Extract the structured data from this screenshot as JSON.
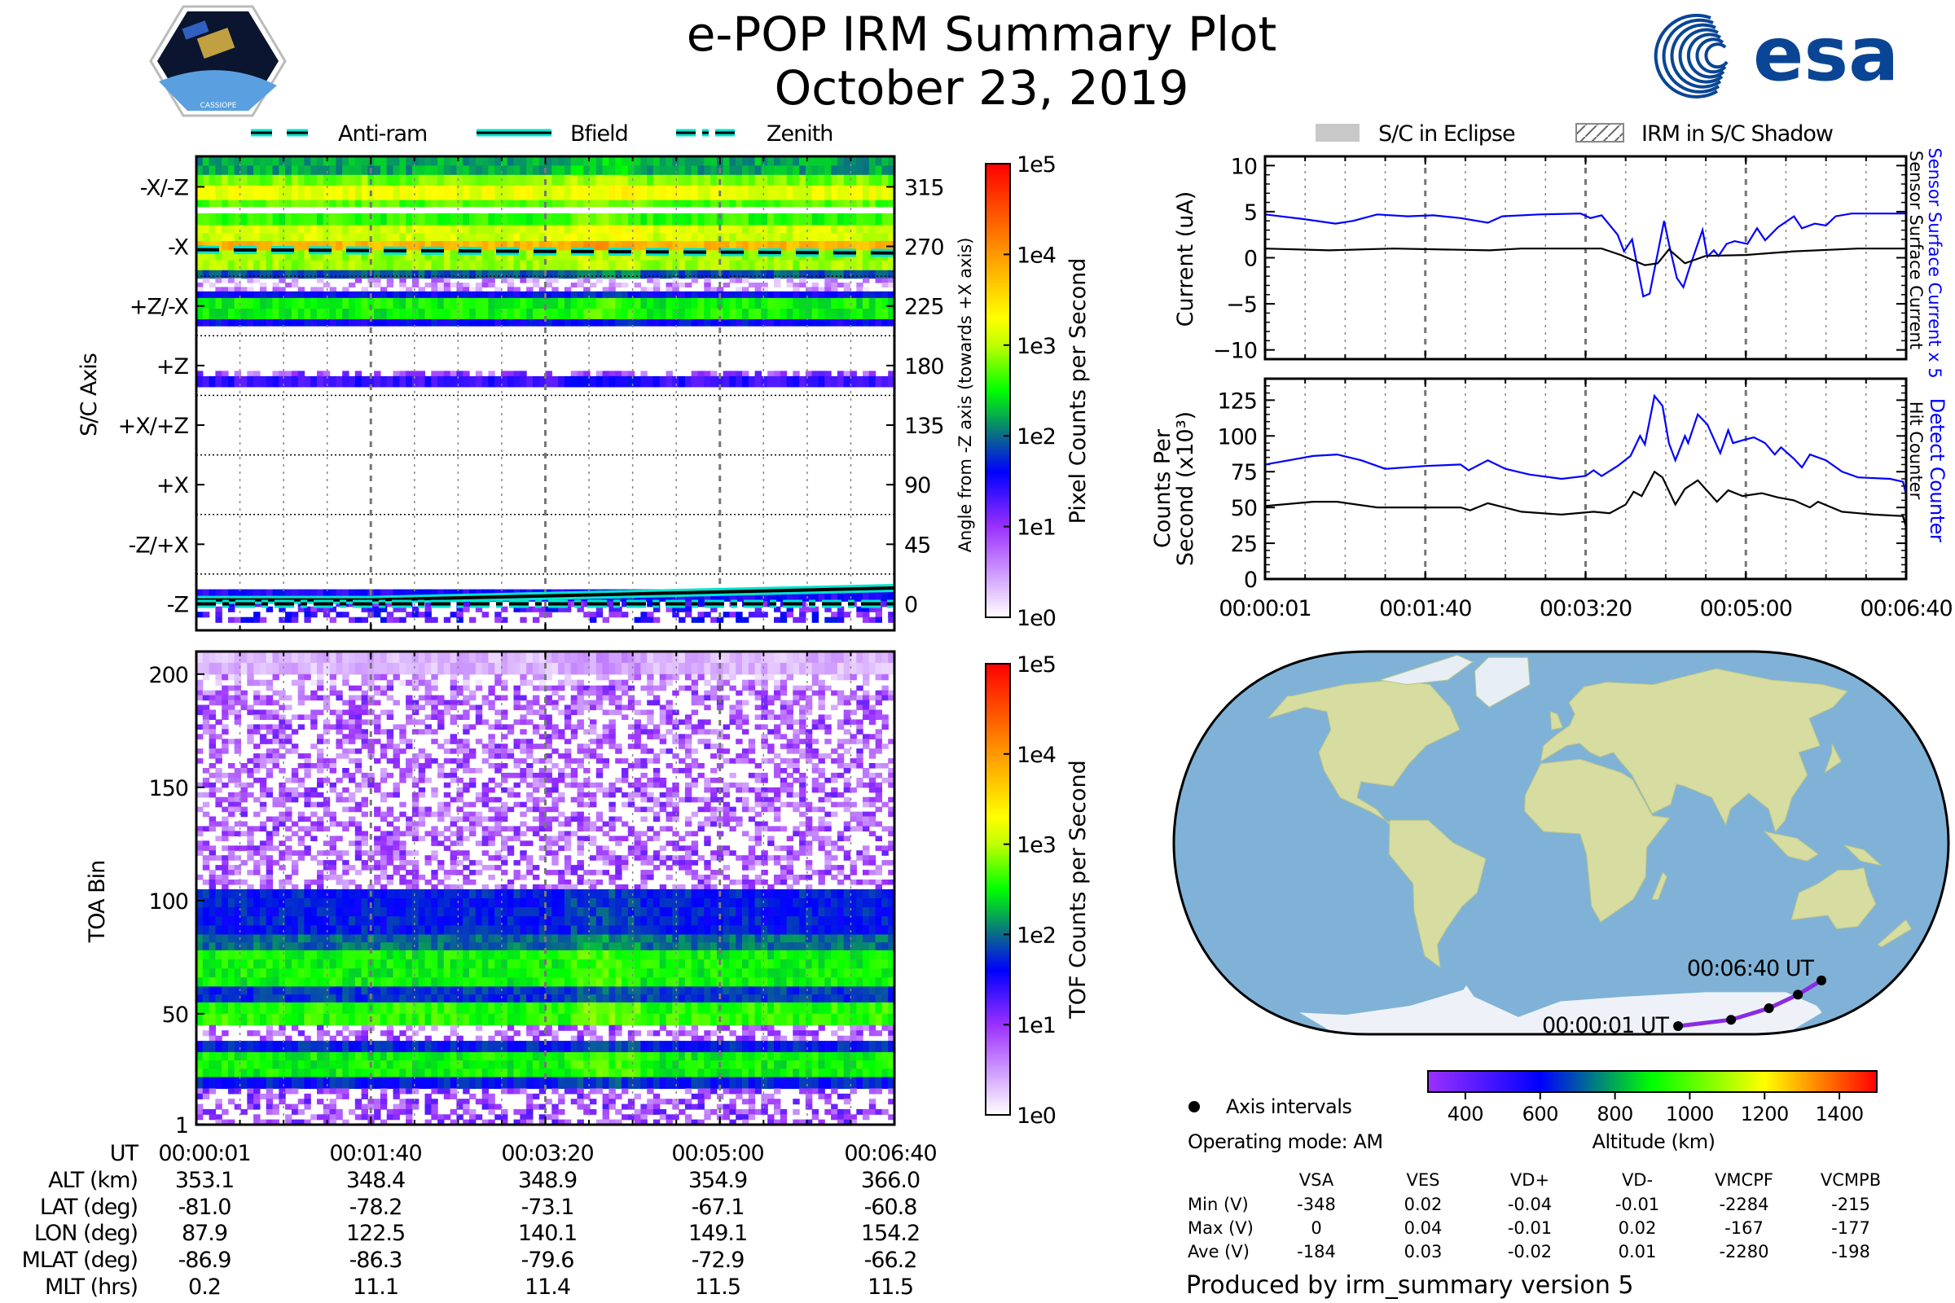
{
  "title": "e-POP IRM Summary Plot",
  "date": "October 23, 2019",
  "logos": {
    "left_text": "CASSIOPE",
    "right_text": "esa"
  },
  "colors": {
    "esa_blue": "#0a4595",
    "series_blue": "#0000ff",
    "series_black": "#000000",
    "bfield_outline": "#00e5d0",
    "trajectory": "#8a2be2",
    "eclipse_gray": "#c8c8c8"
  },
  "legend_left": [
    {
      "label": "Anti-ram",
      "style": "dashed"
    },
    {
      "label": "Bfield",
      "style": "solid"
    },
    {
      "label": "Zenith",
      "style": "dashdot"
    }
  ],
  "legend_right": [
    {
      "label": "S/C in Eclipse",
      "style": "gray-fill"
    },
    {
      "label": "IRM in S/C Shadow",
      "style": "hatch"
    }
  ],
  "chart_data": [
    {
      "id": "angle_spectrogram",
      "type": "heatmap",
      "xlabel": "",
      "x_unit": "seconds from 00:00:01",
      "xlim": [
        0,
        400
      ],
      "ylabel_left": "S/C Axis",
      "ylabel_right": "Angle from -Z axis (towards +X axis)",
      "ylim": [
        -20,
        338
      ],
      "left_ticks": [
        {
          "v": 315,
          "label": "-X/-Z"
        },
        {
          "v": 270,
          "label": "-X"
        },
        {
          "v": 225,
          "label": "+Z/-X"
        },
        {
          "v": 180,
          "label": "+Z"
        },
        {
          "v": 135,
          "label": "+X/+Z"
        },
        {
          "v": 90,
          "label": "+X"
        },
        {
          "v": 45,
          "label": "-Z/+X"
        },
        {
          "v": 0,
          "label": "-Z"
        }
      ],
      "right_ticks": [
        "315",
        "270",
        "225",
        "180",
        "135",
        "90",
        "45",
        "0"
      ],
      "colorbar": {
        "label": "Pixel Counts per Second",
        "ticks": [
          "1e5",
          "1e4",
          "1e3",
          "1e2",
          "1e1",
          "1e0"
        ],
        "log_range": [
          0,
          5
        ]
      },
      "bands_log_counts": [
        {
          "range": [
            324,
            338
          ],
          "v": 2.2
        },
        {
          "range": [
            316,
            324
          ],
          "v": 2.8
        },
        {
          "range": [
            305,
            316
          ],
          "v": 3.2
        },
        {
          "range": [
            300,
            305
          ],
          "v": 2.7
        },
        {
          "range": [
            286,
            295
          ],
          "v": 2.6
        },
        {
          "range": [
            274,
            286
          ],
          "v": 3.1
        },
        {
          "range": [
            267,
            274
          ],
          "v": 3.8
        },
        {
          "range": [
            252,
            267
          ],
          "v": 2.9
        },
        {
          "range": [
            246,
            252
          ],
          "v": 1.9
        },
        {
          "range": [
            236,
            246
          ],
          "v": 0.5,
          "sparse": true
        },
        {
          "range": [
            231,
            236
          ],
          "v": 1.6
        },
        {
          "range": [
            215,
            231
          ],
          "v": 2.5
        },
        {
          "range": [
            210,
            215
          ],
          "v": 1.6
        },
        {
          "range": [
            172,
            176
          ],
          "v": 0.9,
          "sparse": true
        },
        {
          "range": [
            164,
            172
          ],
          "v": 1.4
        },
        {
          "range": [
            2,
            11
          ],
          "v": 1.5
        },
        {
          "range": [
            -14,
            2
          ],
          "v": 1.3,
          "sparse": true
        }
      ],
      "overlay_lines": {
        "anti_ram": [
          [
            0,
            267.5
          ],
          [
            400,
            265
          ]
        ],
        "bfield": [
          [
            0,
            3
          ],
          [
            100,
            3
          ],
          [
            200,
            6
          ],
          [
            300,
            9
          ],
          [
            400,
            12
          ]
        ],
        "zenith": [
          [
            0,
            0
          ],
          [
            400,
            0
          ]
        ]
      }
    },
    {
      "id": "toa_spectrogram",
      "type": "heatmap",
      "xlim": [
        0,
        400
      ],
      "ylabel": "TOA Bin",
      "ylim": [
        1,
        210
      ],
      "yticks": [
        {
          "v": 200,
          "label": "200"
        },
        {
          "v": 150,
          "label": "150"
        },
        {
          "v": 100,
          "label": "100"
        },
        {
          "v": 50,
          "label": "50"
        },
        {
          "v": 1,
          "label": "1"
        }
      ],
      "colorbar": {
        "label": "TOF Counts per Second",
        "ticks": [
          "1e5",
          "1e4",
          "1e3",
          "1e2",
          "1e1",
          "1e0"
        ],
        "log_range": [
          0,
          5
        ]
      },
      "bands_log_counts": [
        {
          "range": [
            200,
            210
          ],
          "v": 0.35
        },
        {
          "range": [
            195,
            200
          ],
          "v": 0.5,
          "sparse": true
        },
        {
          "range": [
            105,
            195
          ],
          "v": 0.8,
          "sparse": true
        },
        {
          "range": [
            85,
            105
          ],
          "v": 1.7
        },
        {
          "range": [
            78,
            85
          ],
          "v": 2.0
        },
        {
          "range": [
            62,
            78
          ],
          "v": 2.5
        },
        {
          "range": [
            55,
            62
          ],
          "v": 1.8
        },
        {
          "range": [
            45,
            55
          ],
          "v": 2.6
        },
        {
          "range": [
            38,
            45
          ],
          "v": 0.8,
          "sparse": true
        },
        {
          "range": [
            33,
            38
          ],
          "v": 1.7
        },
        {
          "range": [
            22,
            33
          ],
          "v": 2.5
        },
        {
          "range": [
            17,
            22
          ],
          "v": 1.7
        },
        {
          "range": [
            1,
            17
          ],
          "v": 0.9,
          "sparse": true
        }
      ]
    },
    {
      "id": "current",
      "type": "line",
      "ylabel": "Current (uA)",
      "ylim": [
        -11,
        11
      ],
      "yticks": [
        "10",
        "5",
        "0",
        "−5",
        "−10"
      ],
      "ytick_values": [
        10,
        5,
        0,
        -5,
        -10
      ],
      "right_labels": [
        "Sensor Surface Current x 5",
        "Sensor Surface Current"
      ],
      "series": [
        {
          "name": "Sensor Surface Current x 5",
          "color": "#0000ff",
          "points": [
            [
              0,
              4.7
            ],
            [
              24,
              4.2
            ],
            [
              44,
              3.7
            ],
            [
              55,
              4.0
            ],
            [
              70,
              4.7
            ],
            [
              89,
              4.5
            ],
            [
              105,
              4.6
            ],
            [
              122,
              4.3
            ],
            [
              139,
              3.8
            ],
            [
              148,
              4.5
            ],
            [
              171,
              4.7
            ],
            [
              197,
              4.8
            ],
            [
              203,
              4.3
            ],
            [
              210,
              4.6
            ],
            [
              220,
              2.5
            ],
            [
              224,
              0.7
            ],
            [
              229,
              2.0
            ],
            [
              236,
              -4.2
            ],
            [
              240,
              -3.9
            ],
            [
              249,
              4.0
            ],
            [
              252,
              1.5
            ],
            [
              257,
              -2.2
            ],
            [
              261,
              -3.2
            ],
            [
              265,
              -1.0
            ],
            [
              273,
              3.0
            ],
            [
              276,
              0.1
            ],
            [
              280,
              0.8
            ],
            [
              283,
              0.2
            ],
            [
              288,
              1.5
            ],
            [
              293,
              1.8
            ],
            [
              301,
              1.5
            ],
            [
              307,
              3.2
            ],
            [
              312,
              1.9
            ],
            [
              320,
              3.3
            ],
            [
              330,
              4.5
            ],
            [
              335,
              3.2
            ],
            [
              343,
              3.7
            ],
            [
              350,
              3.5
            ],
            [
              356,
              4.5
            ],
            [
              366,
              4.8
            ],
            [
              400,
              4.8
            ]
          ]
        },
        {
          "name": "Sensor Surface Current",
          "color": "#000000",
          "points": [
            [
              0,
              1.0
            ],
            [
              40,
              0.8
            ],
            [
              80,
              1.0
            ],
            [
              140,
              0.8
            ],
            [
              160,
              1.0
            ],
            [
              210,
              1.0
            ],
            [
              222,
              0.3
            ],
            [
              237,
              -0.8
            ],
            [
              245,
              -0.6
            ],
            [
              252,
              0.9
            ],
            [
              262,
              -0.6
            ],
            [
              275,
              0.2
            ],
            [
              300,
              0.3
            ],
            [
              330,
              0.7
            ],
            [
              370,
              1.0
            ],
            [
              400,
              1.0
            ]
          ]
        }
      ]
    },
    {
      "id": "counts",
      "type": "line",
      "ylabel": [
        "Counts Per",
        "Second (x10³)"
      ],
      "ylim": [
        0,
        140
      ],
      "yticks": [
        "125",
        "100",
        "75",
        "50",
        "25",
        "0"
      ],
      "ytick_values": [
        125,
        100,
        75,
        50,
        25,
        0
      ],
      "xticks": [
        "00:00:01",
        "00:01:40",
        "00:03:20",
        "00:05:00",
        "00:06:40"
      ],
      "right_labels": [
        "Detect Counter",
        "Hit Counter"
      ],
      "series": [
        {
          "name": "Detect Counter",
          "color": "#0000ff",
          "points": [
            [
              0,
              80
            ],
            [
              30,
              86
            ],
            [
              45,
              87
            ],
            [
              60,
              83
            ],
            [
              75,
              77
            ],
            [
              100,
              79
            ],
            [
              122,
              80
            ],
            [
              127,
              76
            ],
            [
              139,
              83
            ],
            [
              150,
              77
            ],
            [
              165,
              73
            ],
            [
              185,
              70
            ],
            [
              200,
              72
            ],
            [
              205,
              76
            ],
            [
              210,
              72
            ],
            [
              220,
              79
            ],
            [
              228,
              86
            ],
            [
              234,
              100
            ],
            [
              237,
              94
            ],
            [
              243,
              128
            ],
            [
              248,
              121
            ],
            [
              252,
              95
            ],
            [
              256,
              83
            ],
            [
              262,
              100
            ],
            [
              264,
              95
            ],
            [
              270,
              115
            ],
            [
              276,
              108
            ],
            [
              284,
              88
            ],
            [
              289,
              104
            ],
            [
              292,
              95
            ],
            [
              298,
              97
            ],
            [
              305,
              99
            ],
            [
              312,
              95
            ],
            [
              318,
              87
            ],
            [
              322,
              92
            ],
            [
              330,
              84
            ],
            [
              335,
              78
            ],
            [
              340,
              87
            ],
            [
              350,
              83
            ],
            [
              360,
              75
            ],
            [
              370,
              71
            ],
            [
              390,
              70
            ],
            [
              398,
              68
            ],
            [
              400,
              59
            ]
          ]
        },
        {
          "name": "Hit Counter",
          "color": "#000000",
          "points": [
            [
              0,
              51
            ],
            [
              30,
              54
            ],
            [
              45,
              54
            ],
            [
              70,
              50
            ],
            [
              100,
              50
            ],
            [
              122,
              50
            ],
            [
              128,
              48
            ],
            [
              139,
              53
            ],
            [
              160,
              47
            ],
            [
              185,
              45
            ],
            [
              205,
              47
            ],
            [
              215,
              46
            ],
            [
              225,
              52
            ],
            [
              230,
              61
            ],
            [
              235,
              58
            ],
            [
              243,
              75
            ],
            [
              248,
              71
            ],
            [
              256,
              52
            ],
            [
              262,
              63
            ],
            [
              270,
              69
            ],
            [
              282,
              54
            ],
            [
              289,
              62
            ],
            [
              298,
              58
            ],
            [
              310,
              60
            ],
            [
              320,
              57
            ],
            [
              330,
              55
            ],
            [
              340,
              50
            ],
            [
              345,
              54
            ],
            [
              360,
              47
            ],
            [
              380,
              45
            ],
            [
              398,
              44
            ],
            [
              400,
              36
            ]
          ]
        }
      ]
    },
    {
      "id": "orbit_map",
      "type": "scatter",
      "points_lonlat": [
        [
          87.9,
          -81.0
        ],
        [
          122.5,
          -78.2
        ],
        [
          140.1,
          -73.1
        ],
        [
          149.1,
          -67.1
        ],
        [
          154.2,
          -60.8
        ]
      ],
      "start_label": "00:00:01 UT",
      "end_label": "00:06:40 UT",
      "colorbar": {
        "label": "Altitude (km)",
        "ticks": [
          "400",
          "600",
          "800",
          "1000",
          "1200",
          "1400"
        ],
        "tick_values": [
          400,
          600,
          800,
          1000,
          1200,
          1400
        ],
        "range": [
          300,
          1500
        ]
      }
    }
  ],
  "ephemeris": {
    "row_labels": [
      "UT",
      "ALT (km)",
      "LAT (deg)",
      "LON (deg)",
      "MLAT (deg)",
      "MLT (hrs)"
    ],
    "columns": [
      [
        "00:00:01",
        "353.1",
        "-81.0",
        "87.9",
        "-86.9",
        "0.2"
      ],
      [
        "00:01:40",
        "348.4",
        "-78.2",
        "122.5",
        "-86.3",
        "11.1"
      ],
      [
        "00:03:20",
        "348.9",
        "-73.1",
        "140.1",
        "-79.6",
        "11.4"
      ],
      [
        "00:05:00",
        "354.9",
        "-67.1",
        "149.1",
        "-72.9",
        "11.5"
      ],
      [
        "00:06:40",
        "366.0",
        "-60.8",
        "154.2",
        "-66.2",
        "11.5"
      ]
    ]
  },
  "axis_intervals_label": "Axis intervals",
  "operating_mode": "Operating mode: AM",
  "stats": {
    "columns": [
      "VSA",
      "VES",
      "VD+",
      "VD-",
      "VMCPF",
      "VCMPB"
    ],
    "rows": [
      {
        "label": "Min (V)",
        "values": [
          "-348",
          "0.02",
          "-0.04",
          "-0.01",
          "-2284",
          "-215"
        ]
      },
      {
        "label": "Max (V)",
        "values": [
          "0",
          "0.04",
          "-0.01",
          "0.02",
          "-167",
          "-177"
        ]
      },
      {
        "label": "Ave (V)",
        "values": [
          "-184",
          "0.03",
          "-0.02",
          "0.01",
          "-2280",
          "-198"
        ]
      }
    ]
  },
  "footer": "Produced by irm_summary version 5"
}
